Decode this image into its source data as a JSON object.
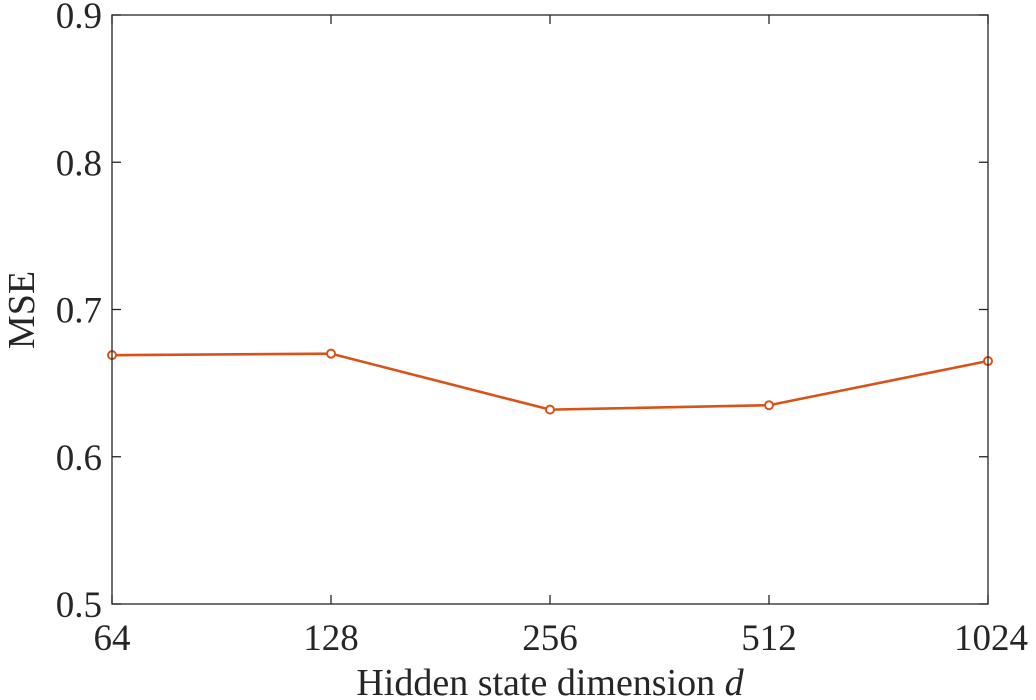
{
  "chart_data": {
    "type": "line",
    "x_categories": [
      "64",
      "128",
      "256",
      "512",
      "1024"
    ],
    "series": [
      {
        "values": [
          0.669,
          0.67,
          0.632,
          0.635,
          0.665
        ],
        "color": "#d95319",
        "marker": "circle"
      }
    ],
    "ylim": [
      0.5,
      0.9
    ],
    "y_ticks": [
      "0.5",
      "0.6",
      "0.7",
      "0.8",
      "0.9"
    ],
    "xlabel_text": "Hidden state dimension ",
    "xlabel_var": "d",
    "ylabel": "MSE",
    "grid": false,
    "box": true
  }
}
